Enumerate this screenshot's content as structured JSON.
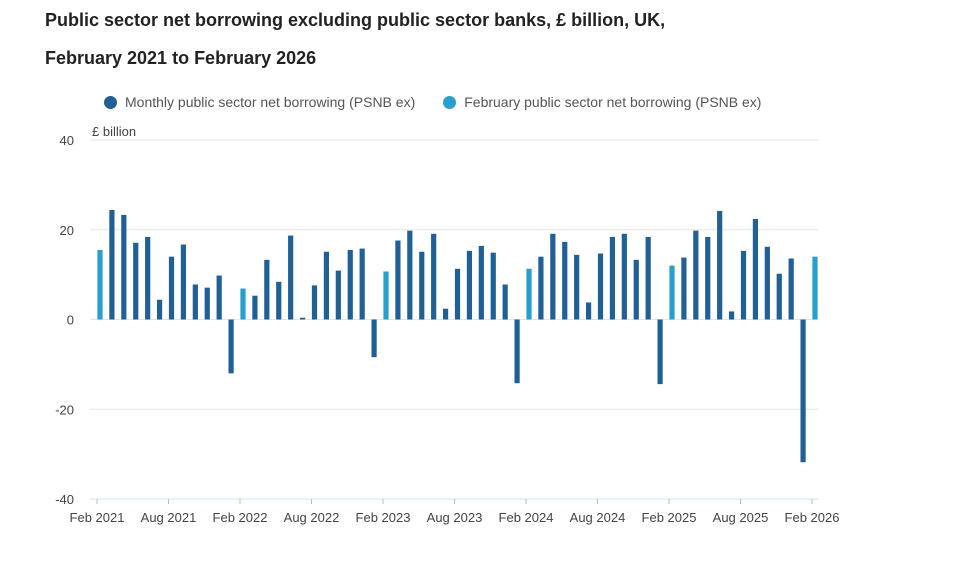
{
  "chart_data": {
    "type": "bar",
    "title": "Public sector net borrowing excluding public sector banks, £ billion, UK,",
    "subtitle": "February 2021 to February 2026",
    "ylabel": "£ billion",
    "ylim": [
      -40,
      40
    ],
    "yticks": [
      40,
      20,
      0,
      -20,
      -40
    ],
    "xtick_labels": [
      "Feb 2021",
      "Aug 2021",
      "Feb 2022",
      "Aug 2022",
      "Feb 2023",
      "Aug 2023",
      "Feb 2024",
      "Aug 2024",
      "Feb 2025",
      "Aug 2025",
      "Feb 2026"
    ],
    "grid": true,
    "legend_placement": "top",
    "series": [
      {
        "name": "Monthly public sector net borrowing (PSNB ex)",
        "color": "#206095"
      },
      {
        "name": "February public sector net borrowing (PSNB ex)",
        "color": "#27a0cc"
      }
    ],
    "months": [
      "2021-02",
      "2021-03",
      "2021-04",
      "2021-05",
      "2021-06",
      "2021-07",
      "2021-08",
      "2021-09",
      "2021-10",
      "2021-11",
      "2021-12",
      "2022-01",
      "2022-02",
      "2022-03",
      "2022-04",
      "2022-05",
      "2022-06",
      "2022-07",
      "2022-08",
      "2022-09",
      "2022-10",
      "2022-11",
      "2022-12",
      "2023-01",
      "2023-02",
      "2023-03",
      "2023-04",
      "2023-05",
      "2023-06",
      "2023-07",
      "2023-08",
      "2023-09",
      "2023-10",
      "2023-11",
      "2023-12",
      "2024-01",
      "2024-02",
      "2024-03",
      "2024-04",
      "2024-05",
      "2024-06",
      "2024-07",
      "2024-08",
      "2024-09",
      "2024-10",
      "2024-11",
      "2024-12",
      "2025-01",
      "2025-02",
      "2025-03",
      "2025-04",
      "2025-05",
      "2025-06",
      "2025-07",
      "2025-08",
      "2025-09",
      "2025-10",
      "2025-11",
      "2025-12",
      "2026-01",
      "2026-02"
    ],
    "values": [
      15.5,
      24.4,
      23.3,
      17.1,
      18.4,
      4.4,
      14.0,
      16.7,
      7.8,
      7.1,
      9.8,
      -12.0,
      6.9,
      5.3,
      13.3,
      8.4,
      18.7,
      0.4,
      7.6,
      15.1,
      10.9,
      15.5,
      15.8,
      -8.4,
      10.7,
      17.6,
      19.8,
      15.1,
      19.1,
      2.4,
      11.3,
      15.3,
      16.4,
      14.9,
      7.8,
      -14.2,
      11.3,
      14.0,
      19.1,
      17.3,
      14.4,
      3.8,
      14.7,
      18.4,
      19.1,
      13.3,
      18.4,
      -14.4,
      12.0,
      13.8,
      19.8,
      18.4,
      24.2,
      1.8,
      15.3,
      22.4,
      16.2,
      10.2,
      13.6,
      -31.8,
      14.0
    ]
  }
}
